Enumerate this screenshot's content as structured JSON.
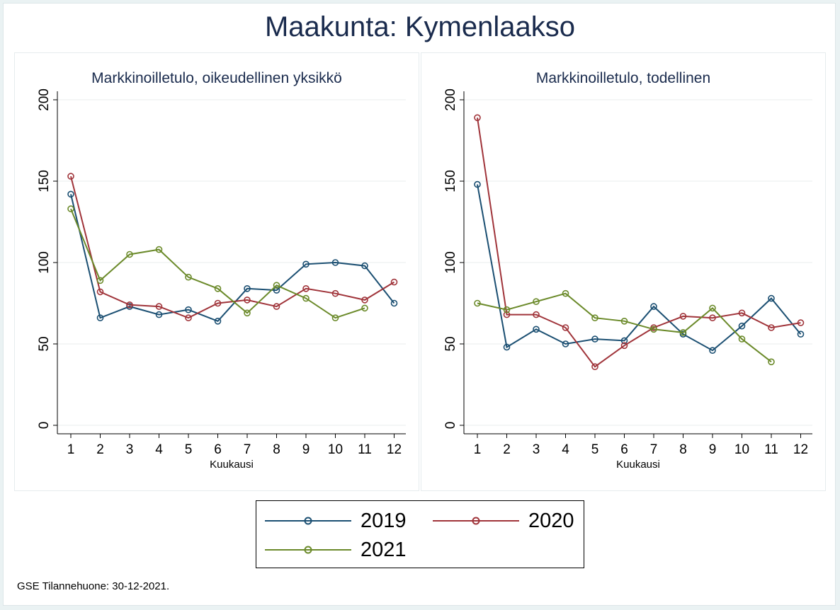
{
  "main_title": "Maakunta: Kymenlaakso",
  "footnote": "GSE Tilannehuone: 30-12-2021.",
  "legend": [
    {
      "label": "2019",
      "color": "#1b4f72"
    },
    {
      "label": "2020",
      "color": "#a0343a"
    },
    {
      "label": "2021",
      "color": "#6b8a2a"
    }
  ],
  "chart_data": [
    {
      "type": "line",
      "title": "Markkinoilletulo, oikeudellinen yksikkö",
      "xlabel": "Kuukausi",
      "ylabel": "",
      "x": [
        1,
        2,
        3,
        4,
        5,
        6,
        7,
        8,
        9,
        10,
        11,
        12
      ],
      "ylim": [
        0,
        200
      ],
      "yticks": [
        0,
        50,
        100,
        150,
        200
      ],
      "grid": true,
      "series": [
        {
          "name": "2019",
          "values": [
            142,
            66,
            73,
            68,
            71,
            64,
            84,
            83,
            99,
            100,
            98,
            75
          ]
        },
        {
          "name": "2020",
          "values": [
            153,
            82,
            74,
            73,
            66,
            75,
            77,
            73,
            84,
            81,
            77,
            88
          ]
        },
        {
          "name": "2021",
          "values": [
            133,
            89,
            105,
            108,
            91,
            84,
            69,
            86,
            78,
            66,
            72,
            null
          ]
        }
      ]
    },
    {
      "type": "line",
      "title": "Markkinoilletulo, todellinen",
      "xlabel": "Kuukausi",
      "ylabel": "",
      "x": [
        1,
        2,
        3,
        4,
        5,
        6,
        7,
        8,
        9,
        10,
        11,
        12
      ],
      "ylim": [
        0,
        200
      ],
      "yticks": [
        0,
        50,
        100,
        150,
        200
      ],
      "grid": true,
      "series": [
        {
          "name": "2019",
          "values": [
            148,
            48,
            59,
            50,
            53,
            52,
            73,
            56,
            46,
            61,
            78,
            56
          ]
        },
        {
          "name": "2020",
          "values": [
            189,
            68,
            68,
            60,
            36,
            49,
            60,
            67,
            66,
            69,
            60,
            63
          ]
        },
        {
          "name": "2021",
          "values": [
            75,
            71,
            76,
            81,
            66,
            64,
            59,
            57,
            72,
            53,
            39,
            null
          ]
        }
      ]
    }
  ]
}
